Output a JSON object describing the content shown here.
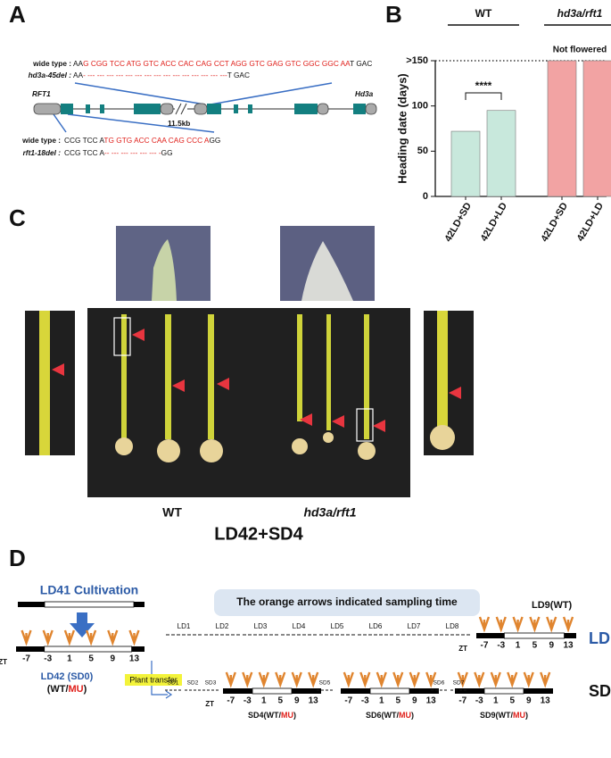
{
  "panel_a": {
    "label": "A",
    "gene_1": "RFT1",
    "gene_2": "Hd3a",
    "distance": "11.5kb",
    "top_alignment": {
      "ref_label": "wide type :",
      "ref_parts": [
        "AA",
        "G CGG TCC ATG GTC ACC CAC CAG CCT AGG GTC GAG GTC GGC GGC AA",
        "T GAC"
      ],
      "del_label": "hd3a-45del :",
      "del_parts": [
        "AA",
        "- --- --- --- --- --- --- --- --- --- --- --- --- --- --- ---",
        "T GAC"
      ]
    },
    "bottom_alignment": {
      "ref_label": "wide type :",
      "ref_parts": [
        "CCG TCC A",
        "TG GTG ACC CAA CAG CCC A",
        "GG"
      ],
      "del_label": "rft1-18del :",
      "del_parts": [
        "CCG TCC A",
        "-- --- --- --- --- --- -",
        "GG"
      ]
    }
  },
  "chart_data": {
    "type": "bar",
    "panel_label": "B",
    "y_label": "Heading date (days)",
    "categories": [
      "42LD+SD",
      "42LD+LD",
      "42LD+SD",
      "42LD+LD"
    ],
    "series": [
      {
        "name": "WT",
        "color": "#c8e8dc",
        "values": [
          72,
          95,
          null,
          null
        ]
      },
      {
        "name": "hd3a/rft1",
        "color": "#f2a3a3",
        "values": [
          null,
          null,
          150,
          150
        ]
      }
    ],
    "ylim": [
      0,
      150
    ],
    "yticks": [
      0,
      50,
      100,
      {
        "value": 150,
        "label": ">150"
      }
    ],
    "annotation": "****",
    "note": "Not flowered"
  },
  "panel_c": {
    "label": "C",
    "group_1": "WT",
    "group_2": "hd3a/rft1",
    "condition": "LD42+SD4"
  },
  "panel_d": {
    "label": "D",
    "cultivation": "LD41 Cultivation",
    "note": "The orange arrows indicated sampling time",
    "start_label": "LD42 (SD0)",
    "genotype_parts": [
      "(WT/",
      "MU",
      ")"
    ],
    "transfer": "Plant transfer",
    "zt": "ZT",
    "zt_ticks": [
      "-7",
      "-3",
      "1",
      "5",
      "9",
      "13"
    ],
    "ld_days": [
      "LD1",
      "LD2",
      "LD3",
      "LD4",
      "LD5",
      "LD6",
      "LD7",
      "LD8"
    ],
    "ld_end": "LD9(WT)",
    "ld_row": "LD",
    "sd_days": [
      "SD1",
      "SD2",
      "SD3",
      "SD5",
      "SD6",
      "SD7"
    ],
    "sd_timepoints": [
      "SD4",
      "SD6",
      "SD9"
    ],
    "sd_row": "SD"
  }
}
